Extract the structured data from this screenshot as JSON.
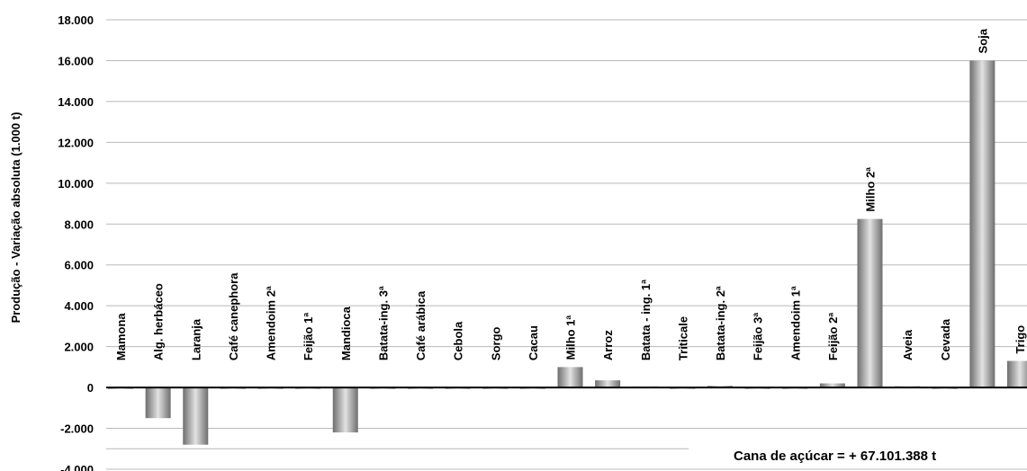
{
  "chart_data": {
    "type": "bar",
    "title": "",
    "ylabel": "Produção - Variação absoluta (1.000 t)",
    "xlabel": "",
    "ylim": [
      -4000,
      18000
    ],
    "yticks": [
      -4000,
      -2000,
      0,
      2000,
      4000,
      6000,
      8000,
      10000,
      12000,
      14000,
      16000,
      18000
    ],
    "ytick_labels": [
      "-4.000",
      "-2.000",
      "0",
      "2.000",
      "4.000",
      "6.000",
      "8.000",
      "10.000",
      "12.000",
      "14.000",
      "16.000",
      "18.000"
    ],
    "grid": true,
    "categories": [
      "Mamona",
      "Alg. herbáceo",
      "Laranja",
      "Café canephora",
      "Amendoim 2ª",
      "Feijão 1ª",
      "Mandioca",
      "Batata-ing. 3ª",
      "Café arábica",
      "Cebola",
      "Sorgo",
      "Cacau",
      "Milho 1ª",
      "Arroz",
      "Batata - ing. 1ª",
      "Triticale",
      "Batata-ing. 2ª",
      "Feijão 3ª",
      "Amendoim 1ª",
      "Feijão 2ª",
      "Milho 2ª",
      "Aveia",
      "Cevada",
      "Soja",
      "Trigo"
    ],
    "values": [
      0,
      -1500,
      -2800,
      -50,
      0,
      -50,
      -2200,
      0,
      0,
      0,
      0,
      0,
      1000,
      350,
      50,
      0,
      80,
      0,
      0,
      200,
      8250,
      60,
      0,
      16000,
      1300
    ],
    "bar_color": "#8a8a8a",
    "annotation": "Cana de açúcar = + 67.101.388 t"
  }
}
